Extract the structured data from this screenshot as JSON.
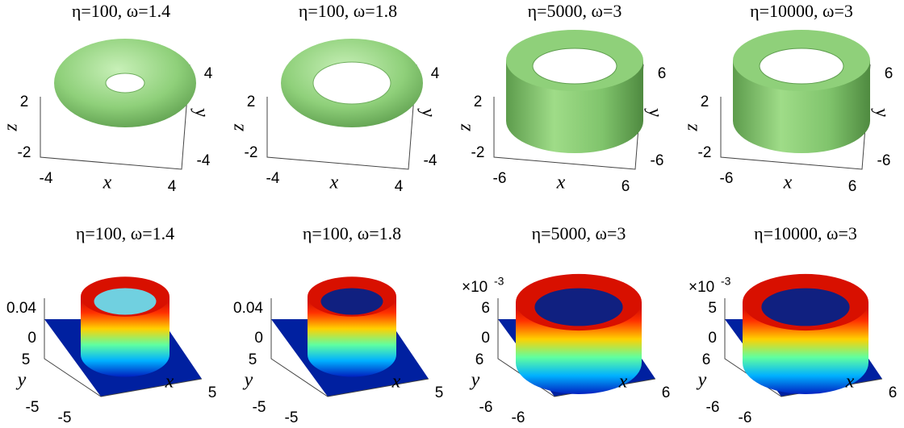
{
  "top": [
    {
      "title": "η=100, ω=1.4",
      "z_label": "z",
      "z_ticks": [
        2,
        -2
      ],
      "x_label": "x",
      "x_ticks": [
        -4,
        4
      ],
      "y_label": "y",
      "y_ticks": [
        4,
        -4
      ]
    },
    {
      "title": "η=100, ω=1.8",
      "z_label": "z",
      "z_ticks": [
        2,
        -2
      ],
      "x_label": "x",
      "x_ticks": [
        -4,
        4
      ],
      "y_label": "y",
      "y_ticks": [
        4,
        -4
      ]
    },
    {
      "title": "η=5000, ω=3",
      "z_label": "z",
      "z_ticks": [
        2,
        -2
      ],
      "x_label": "x",
      "x_ticks": [
        -6,
        6
      ],
      "y_label": "y",
      "y_ticks": [
        6,
        -6
      ]
    },
    {
      "title": "η=10000, ω=3",
      "z_label": "z",
      "z_ticks": [
        2,
        -2
      ],
      "x_label": "x",
      "x_ticks": [
        -6,
        6
      ],
      "y_label": "y",
      "y_ticks": [
        6,
        -6
      ]
    }
  ],
  "bottom": [
    {
      "title": "η=100, ω=1.4",
      "z_ticks": [
        0.04,
        0
      ],
      "y_label": "y",
      "y_ticks": [
        5,
        -5
      ],
      "x_label": "x",
      "x_ticks": [
        -5,
        5
      ]
    },
    {
      "title": "η=100, ω=1.8",
      "z_ticks": [
        0.04,
        0
      ],
      "y_label": "y",
      "y_ticks": [
        5,
        -5
      ],
      "x_label": "x",
      "x_ticks": [
        -5,
        5
      ]
    },
    {
      "title": "η=5000, ω=3",
      "multiplier": "×10",
      "exponent": "-3",
      "z_ticks": [
        6,
        0
      ],
      "y_label": "y",
      "y_ticks": [
        6,
        -6
      ],
      "x_label": "x",
      "x_ticks": [
        -6,
        6
      ]
    },
    {
      "title": "η=10000, ω=3",
      "multiplier": "×10",
      "exponent": "-3",
      "z_ticks": [
        5,
        0
      ],
      "y_label": "y",
      "y_ticks": [
        6,
        -6
      ],
      "x_label": "x",
      "x_ticks": [
        -6,
        6
      ]
    }
  ]
}
